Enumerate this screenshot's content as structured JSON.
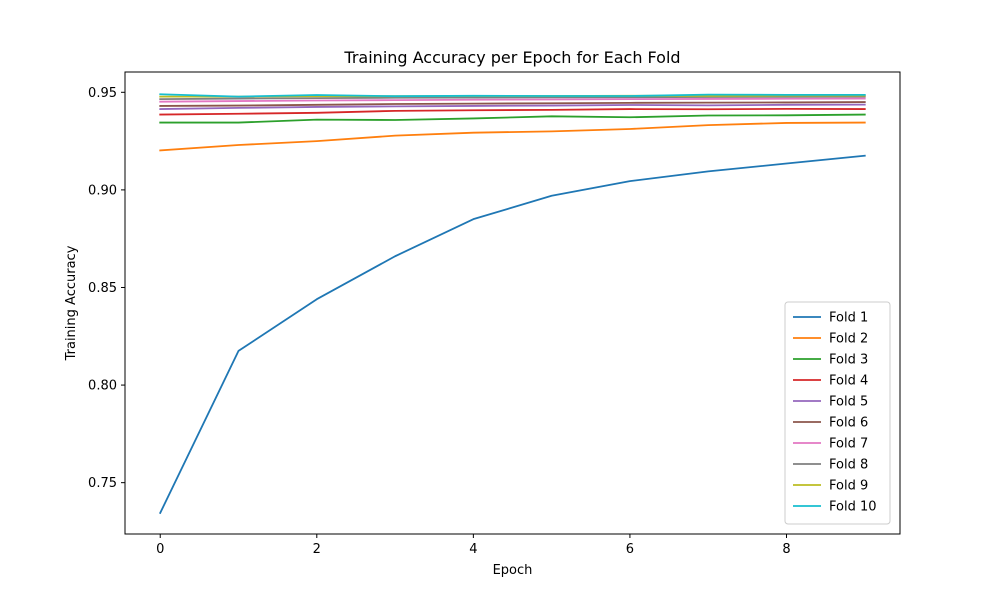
{
  "chart_data": {
    "type": "line",
    "title": "Training Accuracy per Epoch for Each Fold",
    "xlabel": "Epoch",
    "ylabel": "Training Accuracy",
    "xlim": [
      -0.45,
      9.45
    ],
    "ylim": [
      0.7237,
      0.9604
    ],
    "x_ticks": [
      0,
      2,
      4,
      6,
      8
    ],
    "y_ticks": [
      0.75,
      0.8,
      0.85,
      0.9,
      0.95
    ],
    "grid": false,
    "legend_position": "lower-right",
    "x": [
      0,
      1,
      2,
      3,
      4,
      5,
      6,
      7,
      8,
      9
    ],
    "series": [
      {
        "name": "Fold 1",
        "color": "#1f77b4",
        "values": [
          0.7345,
          0.8175,
          0.844,
          0.866,
          0.885,
          0.897,
          0.9045,
          0.9095,
          0.9135,
          0.9175
        ]
      },
      {
        "name": "Fold 2",
        "color": "#ff7f0e",
        "values": [
          0.9202,
          0.923,
          0.925,
          0.9278,
          0.9293,
          0.93,
          0.9312,
          0.9332,
          0.9343,
          0.9345
        ]
      },
      {
        "name": "Fold 3",
        "color": "#2ca02c",
        "values": [
          0.9345,
          0.9345,
          0.936,
          0.9358,
          0.9366,
          0.9377,
          0.9372,
          0.9381,
          0.9382,
          0.9386
        ]
      },
      {
        "name": "Fold 4",
        "color": "#d62728",
        "values": [
          0.9386,
          0.939,
          0.9395,
          0.9405,
          0.9408,
          0.941,
          0.9414,
          0.9413,
          0.9415,
          0.9414
        ]
      },
      {
        "name": "Fold 5",
        "color": "#9467bd",
        "values": [
          0.9414,
          0.942,
          0.9425,
          0.9428,
          0.943,
          0.9432,
          0.9435,
          0.9433,
          0.9436,
          0.9437
        ]
      },
      {
        "name": "Fold 6",
        "color": "#8c564b",
        "values": [
          0.943,
          0.9432,
          0.9436,
          0.944,
          0.9442,
          0.9444,
          0.9446,
          0.9447,
          0.9448,
          0.945
        ]
      },
      {
        "name": "Fold 7",
        "color": "#e377c2",
        "values": [
          0.9452,
          0.9455,
          0.9458,
          0.946,
          0.9462,
          0.9463,
          0.9465,
          0.9466,
          0.9467,
          0.9468
        ]
      },
      {
        "name": "Fold 8",
        "color": "#7f7f7f",
        "values": [
          0.9465,
          0.9468,
          0.947,
          0.9472,
          0.9473,
          0.9474,
          0.9475,
          0.9476,
          0.9477,
          0.9478
        ]
      },
      {
        "name": "Fold 9",
        "color": "#bcbd22",
        "values": [
          0.9478,
          0.9478,
          0.948,
          0.948,
          0.9481,
          0.9481,
          0.9482,
          0.9482,
          0.9483,
          0.9483
        ]
      },
      {
        "name": "Fold 10",
        "color": "#17becf",
        "values": [
          0.949,
          0.9478,
          0.9486,
          0.948,
          0.9482,
          0.9481,
          0.9481,
          0.9488,
          0.9487,
          0.9487
        ]
      }
    ]
  }
}
